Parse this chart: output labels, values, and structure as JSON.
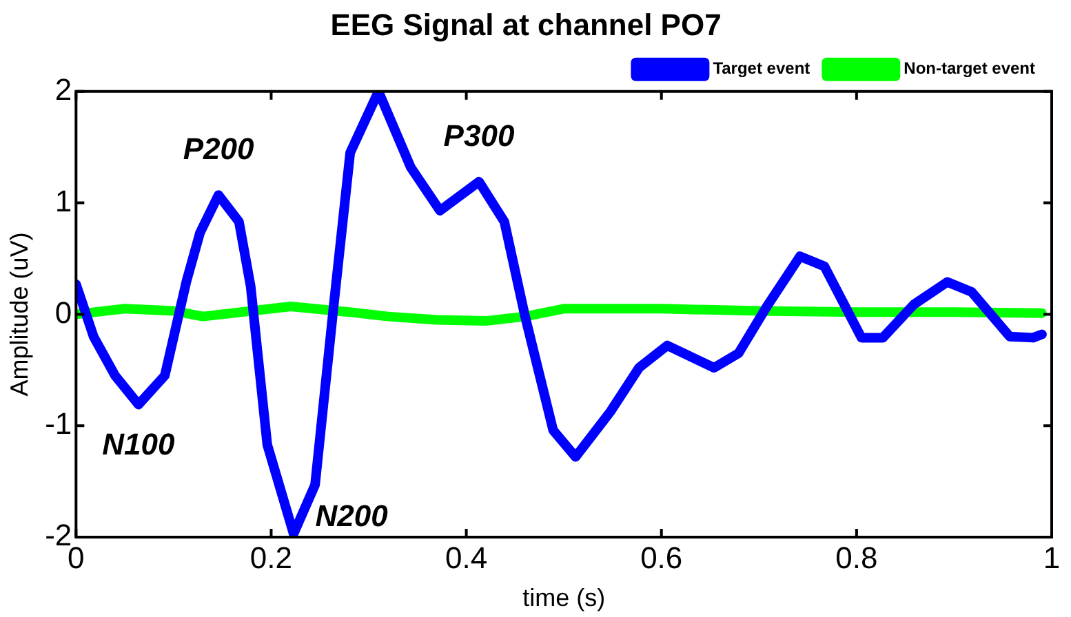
{
  "chart_data": {
    "type": "line",
    "title": "EEG Signal at channel PO7",
    "xlabel": "time (s)",
    "ylabel": "Amplitude (uV)",
    "xlim": [
      0,
      1
    ],
    "xticks": [
      0,
      0.2,
      0.4,
      0.6,
      0.8,
      1
    ],
    "ylim": [
      -2,
      2
    ],
    "yticks": [
      -2,
      -1,
      0,
      1,
      2
    ],
    "grid": false,
    "legend": "top right",
    "marker": "none",
    "line_style": "solid",
    "series": [
      {
        "name": "Target event",
        "color": "#0000ff",
        "x": [
          0,
          0.018,
          0.04,
          0.064,
          0.091,
          0.113,
          0.127,
          0.146,
          0.167,
          0.179,
          0.196,
          0.223,
          0.245,
          0.264,
          0.281,
          0.31,
          0.343,
          0.373,
          0.413,
          0.439,
          0.46,
          0.469,
          0.489,
          0.512,
          0.548,
          0.577,
          0.606,
          0.654,
          0.679,
          0.708,
          0.742,
          0.767,
          0.805,
          0.827,
          0.859,
          0.893,
          0.918,
          0.957,
          0.981,
          0.99
        ],
        "values": [
          0.27,
          -0.2,
          -0.55,
          -0.81,
          -0.55,
          0.29,
          0.73,
          1.07,
          0.83,
          0.25,
          -1.17,
          -1.97,
          -1.53,
          0.07,
          1.45,
          2.0,
          1.32,
          0.93,
          1.19,
          0.83,
          -0.01,
          -0.33,
          -1.04,
          -1.28,
          -0.87,
          -0.48,
          -0.28,
          -0.48,
          -0.35,
          0.07,
          0.52,
          0.43,
          -0.21,
          -0.21,
          0.09,
          0.29,
          0.2,
          -0.2,
          -0.21,
          -0.18
        ]
      },
      {
        "name": "Non-target event",
        "color": "#00ff00",
        "x": [
          0,
          0.05,
          0.1,
          0.13,
          0.2,
          0.22,
          0.28,
          0.32,
          0.37,
          0.42,
          0.46,
          0.5,
          0.6,
          0.7,
          0.8,
          0.9,
          0.99
        ],
        "values": [
          0.0,
          0.05,
          0.03,
          -0.02,
          0.05,
          0.07,
          0.02,
          -0.02,
          -0.05,
          -0.06,
          -0.02,
          0.05,
          0.05,
          0.03,
          0.02,
          0.02,
          0.01
        ]
      }
    ],
    "annotations": [
      {
        "text": "N100",
        "x": 0.064,
        "y": -0.81
      },
      {
        "text": "P200",
        "x": 0.146,
        "y": 1.07
      },
      {
        "text": "N200",
        "x": 0.223,
        "y": -1.97
      },
      {
        "text": "P300",
        "x": 0.413,
        "y": 1.19
      }
    ]
  }
}
